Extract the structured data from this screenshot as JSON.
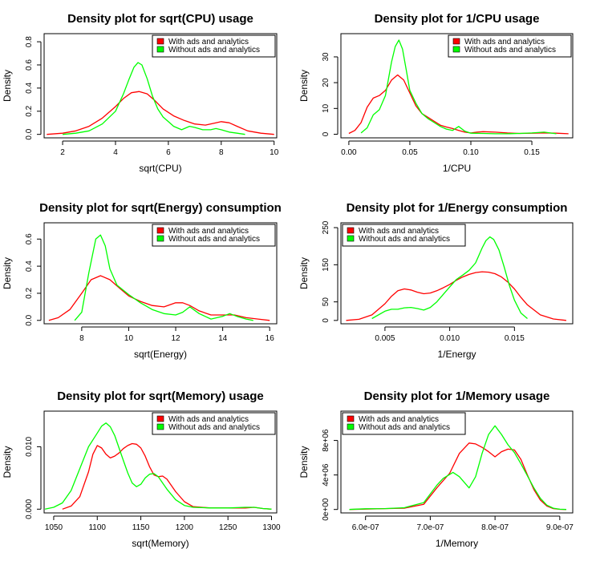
{
  "chart_data": [
    {
      "type": "line",
      "title": "Density plot for sqrt(CPU) usage",
      "xlabel": "sqrt(CPU)",
      "ylabel": "Density",
      "xlim": [
        1.3,
        10.1
      ],
      "ylim": [
        -0.03,
        0.87
      ],
      "xticks": [
        2,
        4,
        6,
        8,
        10
      ],
      "xtick_labels": [
        "2",
        "4",
        "6",
        "8",
        "10"
      ],
      "yticks": [
        0,
        0.2,
        0.4,
        0.6,
        0.8
      ],
      "ytick_labels": [
        "0.0",
        "0.2",
        "0.4",
        "0.6",
        "0.8"
      ],
      "legend_position": "top-right",
      "series": [
        {
          "name": "With ads and analytics",
          "color": "#ff0000",
          "x": [
            1.4,
            2.0,
            2.5,
            3.0,
            3.5,
            4.0,
            4.3,
            4.6,
            4.9,
            5.2,
            5.5,
            5.8,
            6.2,
            6.6,
            7.0,
            7.4,
            7.8,
            8.0,
            8.3,
            8.6,
            9.0,
            9.5,
            10.0
          ],
          "y": [
            0.0,
            0.01,
            0.03,
            0.07,
            0.14,
            0.24,
            0.31,
            0.36,
            0.37,
            0.35,
            0.29,
            0.22,
            0.16,
            0.12,
            0.09,
            0.08,
            0.1,
            0.11,
            0.1,
            0.07,
            0.03,
            0.01,
            0.0
          ]
        },
        {
          "name": "Without ads and analytics",
          "color": "#00ff00",
          "x": [
            2.0,
            2.5,
            3.0,
            3.5,
            4.0,
            4.3,
            4.5,
            4.7,
            4.85,
            5.0,
            5.2,
            5.4,
            5.6,
            5.8,
            6.0,
            6.2,
            6.5,
            6.8,
            7.0,
            7.3,
            7.6,
            7.8,
            8.0,
            8.3,
            8.6,
            8.9
          ],
          "y": [
            0.0,
            0.01,
            0.03,
            0.09,
            0.2,
            0.35,
            0.47,
            0.58,
            0.62,
            0.6,
            0.48,
            0.33,
            0.22,
            0.15,
            0.11,
            0.07,
            0.04,
            0.07,
            0.06,
            0.04,
            0.04,
            0.05,
            0.04,
            0.02,
            0.01,
            0.0
          ]
        }
      ]
    },
    {
      "type": "line",
      "title": "Density plot for 1/CPU usage",
      "xlabel": "1/CPU",
      "ylabel": "Density",
      "xlim": [
        -0.0065,
        0.1835
      ],
      "ylim": [
        -1.4,
        39
      ],
      "xticks": [
        0,
        0.05,
        0.1,
        0.15
      ],
      "xtick_labels": [
        "0.00",
        "0.05",
        "0.10",
        "0.15"
      ],
      "yticks": [
        0,
        10,
        20,
        30
      ],
      "ytick_labels": [
        "0",
        "10",
        "20",
        "30"
      ],
      "legend_position": "top-right",
      "series": [
        {
          "name": "With ads and analytics",
          "color": "#ff0000",
          "x": [
            0.0,
            0.005,
            0.01,
            0.015,
            0.02,
            0.025,
            0.03,
            0.035,
            0.04,
            0.045,
            0.05,
            0.055,
            0.06,
            0.065,
            0.07,
            0.075,
            0.08,
            0.085,
            0.09,
            0.095,
            0.1,
            0.105,
            0.11,
            0.12,
            0.13,
            0.14,
            0.15,
            0.16,
            0.17,
            0.18
          ],
          "y": [
            0.3,
            1.5,
            4.5,
            10.5,
            14.0,
            15.0,
            17.0,
            21.0,
            23.0,
            21.0,
            16.0,
            11.0,
            8.0,
            6.5,
            5.0,
            3.5,
            2.8,
            2.2,
            1.5,
            0.8,
            0.5,
            0.8,
            1.0,
            0.8,
            0.5,
            0.3,
            0.4,
            0.5,
            0.4,
            0.2
          ]
        },
        {
          "name": "Without ads and analytics",
          "color": "#00ff00",
          "x": [
            0.01,
            0.015,
            0.02,
            0.025,
            0.03,
            0.035,
            0.038,
            0.041,
            0.044,
            0.047,
            0.05,
            0.055,
            0.06,
            0.065,
            0.07,
            0.075,
            0.08,
            0.085,
            0.09,
            0.095,
            0.1,
            0.11,
            0.12,
            0.13,
            0.14,
            0.15,
            0.16,
            0.17
          ],
          "y": [
            0.5,
            2.5,
            7.5,
            9.5,
            15.0,
            28.0,
            34.0,
            36.5,
            33.0,
            25.0,
            17.0,
            12.0,
            8.0,
            6.0,
            4.5,
            3.0,
            2.0,
            1.5,
            3.0,
            1.2,
            0.4,
            0.3,
            0.2,
            0.2,
            0.3,
            0.5,
            0.8,
            0.2
          ]
        }
      ]
    },
    {
      "type": "line",
      "title": "Density plot for sqrt(Energy) consumption",
      "xlabel": "sqrt(Energy)",
      "ylabel": "Density",
      "xlim": [
        6.4,
        16.3
      ],
      "ylim": [
        -0.025,
        0.72
      ],
      "xticks": [
        8,
        10,
        12,
        14,
        16
      ],
      "xtick_labels": [
        "8",
        "10",
        "12",
        "14",
        "16"
      ],
      "yticks": [
        0,
        0.2,
        0.4,
        0.6
      ],
      "ytick_labels": [
        "0.0",
        "0.2",
        "0.4",
        "0.6"
      ],
      "legend_position": "top-right",
      "series": [
        {
          "name": "With ads and analytics",
          "color": "#ff0000",
          "x": [
            6.6,
            7.0,
            7.5,
            8.0,
            8.4,
            8.8,
            9.2,
            9.6,
            10.0,
            10.5,
            11.0,
            11.5,
            12.0,
            12.3,
            12.6,
            13.0,
            13.5,
            14.0,
            14.5,
            15.0,
            15.5,
            16.0
          ],
          "y": [
            0.0,
            0.02,
            0.08,
            0.2,
            0.3,
            0.33,
            0.3,
            0.24,
            0.18,
            0.14,
            0.11,
            0.1,
            0.13,
            0.13,
            0.11,
            0.07,
            0.04,
            0.04,
            0.04,
            0.02,
            0.01,
            0.0
          ]
        },
        {
          "name": "Without ads and analytics",
          "color": "#00ff00",
          "x": [
            7.7,
            8.0,
            8.3,
            8.6,
            8.8,
            9.0,
            9.2,
            9.5,
            10.0,
            10.5,
            11.0,
            11.5,
            12.0,
            12.3,
            12.6,
            13.0,
            13.5,
            14.0,
            14.3,
            14.6,
            15.0,
            15.3
          ],
          "y": [
            0.0,
            0.06,
            0.35,
            0.6,
            0.63,
            0.55,
            0.38,
            0.26,
            0.19,
            0.13,
            0.08,
            0.05,
            0.04,
            0.06,
            0.1,
            0.05,
            0.01,
            0.03,
            0.05,
            0.03,
            0.01,
            0.0
          ]
        }
      ]
    },
    {
      "type": "line",
      "title": "Density plot for 1/Energy consumption",
      "xlabel": "1/Energy",
      "ylabel": "Density",
      "xlim": [
        0.0016,
        0.0195
      ],
      "ylim": [
        -9,
        263
      ],
      "xticks": [
        0.005,
        0.01,
        0.015
      ],
      "xtick_labels": [
        "0.005",
        "0.010",
        "0.015"
      ],
      "yticks": [
        0,
        50,
        150,
        250
      ],
      "ytick_labels": [
        "0",
        "50",
        "150",
        "250"
      ],
      "legend_position": "top-left",
      "series": [
        {
          "name": "With ads and analytics",
          "color": "#ff0000",
          "x": [
            0.002,
            0.003,
            0.004,
            0.005,
            0.0055,
            0.006,
            0.0065,
            0.007,
            0.0075,
            0.008,
            0.0085,
            0.009,
            0.0095,
            0.01,
            0.0105,
            0.011,
            0.0115,
            0.012,
            0.0125,
            0.013,
            0.0135,
            0.014,
            0.0145,
            0.015,
            0.0155,
            0.016,
            0.017,
            0.018,
            0.019
          ],
          "y": [
            0,
            3,
            15,
            45,
            65,
            80,
            85,
            82,
            76,
            72,
            74,
            80,
            88,
            97,
            108,
            117,
            124,
            129,
            131,
            130,
            126,
            117,
            103,
            85,
            62,
            42,
            15,
            4,
            0
          ]
        },
        {
          "name": "Without ads and analytics",
          "color": "#00ff00",
          "x": [
            0.004,
            0.005,
            0.0055,
            0.006,
            0.0065,
            0.007,
            0.0075,
            0.008,
            0.0085,
            0.009,
            0.0095,
            0.01,
            0.0105,
            0.011,
            0.0115,
            0.012,
            0.0125,
            0.0128,
            0.0131,
            0.0134,
            0.0138,
            0.0142,
            0.0146,
            0.015,
            0.0155,
            0.016
          ],
          "y": [
            5,
            25,
            30,
            30,
            34,
            35,
            32,
            28,
            35,
            50,
            70,
            90,
            110,
            122,
            135,
            155,
            195,
            215,
            225,
            218,
            190,
            145,
            95,
            55,
            20,
            5
          ]
        }
      ]
    },
    {
      "type": "line",
      "title": "Density plot for sqrt(Memory) usage",
      "xlabel": "sqrt(Memory)",
      "ylabel": "Density",
      "xlim": [
        1039,
        1306
      ],
      "ylim": [
        -0.0006,
        0.0157
      ],
      "xticks": [
        1050,
        1100,
        1150,
        1200,
        1250,
        1300
      ],
      "xtick_labels": [
        "1050",
        "1100",
        "1150",
        "1200",
        "1250",
        "1300"
      ],
      "yticks": [
        0,
        0.01
      ],
      "ytick_labels": [
        "0.000",
        "0.010"
      ],
      "legend_position": "top-right",
      "series": [
        {
          "name": "With ads and analytics",
          "color": "#ff0000",
          "x": [
            1060,
            1070,
            1080,
            1090,
            1095,
            1100,
            1105,
            1110,
            1115,
            1120,
            1125,
            1130,
            1135,
            1140,
            1145,
            1150,
            1155,
            1160,
            1165,
            1170,
            1175,
            1180,
            1185,
            1190,
            1200,
            1210,
            1230,
            1250,
            1270,
            1280,
            1290,
            1300
          ],
          "y": [
            0.0,
            0.0005,
            0.002,
            0.006,
            0.0088,
            0.0102,
            0.0098,
            0.0088,
            0.0082,
            0.0085,
            0.009,
            0.0097,
            0.0102,
            0.0105,
            0.0104,
            0.0098,
            0.0085,
            0.0068,
            0.0055,
            0.0052,
            0.0053,
            0.0048,
            0.0038,
            0.0028,
            0.0012,
            0.0004,
            0.0002,
            0.0002,
            0.0002,
            0.0003,
            0.0001,
            0.0
          ]
        },
        {
          "name": "Without ads and analytics",
          "color": "#00ff00",
          "x": [
            1040,
            1050,
            1060,
            1070,
            1080,
            1090,
            1100,
            1105,
            1110,
            1115,
            1120,
            1125,
            1130,
            1135,
            1140,
            1145,
            1150,
            1155,
            1160,
            1165,
            1170,
            1175,
            1180,
            1190,
            1200,
            1210,
            1230,
            1250,
            1270,
            1280,
            1290,
            1300
          ],
          "y": [
            0.0,
            0.0003,
            0.001,
            0.003,
            0.0065,
            0.01,
            0.0122,
            0.0133,
            0.0138,
            0.0132,
            0.0118,
            0.0098,
            0.0078,
            0.0058,
            0.0042,
            0.0036,
            0.004,
            0.005,
            0.0056,
            0.0057,
            0.0052,
            0.0042,
            0.0032,
            0.0015,
            0.0006,
            0.0003,
            0.0002,
            0.0002,
            0.0003,
            0.0003,
            0.0001,
            0.0
          ]
        }
      ]
    },
    {
      "type": "line",
      "title": "Density plot for 1/Memory usage",
      "xlabel": "1/Memory",
      "ylabel": "Density",
      "xlim": [
        5.62e-07,
        9.2e-07
      ],
      "ylim": [
        -400000,
        11400000
      ],
      "xticks": [
        6e-07,
        7e-07,
        8e-07,
        9e-07
      ],
      "xtick_labels": [
        "6.0e-07",
        "7.0e-07",
        "8.0e-07",
        "9.0e-07"
      ],
      "yticks": [
        0,
        4000000,
        8000000
      ],
      "ytick_labels": [
        "0e+00",
        "4e+06",
        "8e+06"
      ],
      "legend_position": "top-left",
      "series": [
        {
          "name": "With ads and analytics",
          "color": "#ff0000",
          "x": [
            5.75e-07,
            6e-07,
            6.3e-07,
            6.6e-07,
            6.9e-07,
            7.1e-07,
            7.3e-07,
            7.45e-07,
            7.6e-07,
            7.7e-07,
            7.8e-07,
            7.9e-07,
            8e-07,
            8.1e-07,
            8.2e-07,
            8.3e-07,
            8.4e-07,
            8.5e-07,
            8.6e-07,
            8.7e-07,
            8.8e-07,
            8.9e-07,
            9e-07,
            9.1e-07
          ],
          "y": [
            0,
            50000,
            100000,
            150000,
            600000,
            2500000,
            4200000,
            6500000,
            7700000,
            7600000,
            7200000,
            6700000,
            6100000,
            6700000,
            7000000,
            6900000,
            5800000,
            4000000,
            2300000,
            1100000,
            400000,
            100000,
            20000,
            0
          ]
        },
        {
          "name": "Without ads and analytics",
          "color": "#00ff00",
          "x": [
            5.75e-07,
            6e-07,
            6.3e-07,
            6.6e-07,
            6.9e-07,
            7.1e-07,
            7.2e-07,
            7.35e-07,
            7.45e-07,
            7.6e-07,
            7.7e-07,
            7.8e-07,
            7.9e-07,
            8e-07,
            8.1e-07,
            8.2e-07,
            8.3e-07,
            8.4e-07,
            8.5e-07,
            8.6e-07,
            8.7e-07,
            8.8e-07,
            8.9e-07,
            9e-07,
            9.1e-07
          ],
          "y": [
            0,
            80000,
            100000,
            200000,
            800000,
            2800000,
            3600000,
            4300000,
            3800000,
            2500000,
            3800000,
            6500000,
            8700000,
            9700000,
            8700000,
            7500000,
            6600000,
            5300000,
            3900000,
            2500000,
            1300000,
            500000,
            150000,
            30000,
            0
          ]
        }
      ]
    }
  ]
}
